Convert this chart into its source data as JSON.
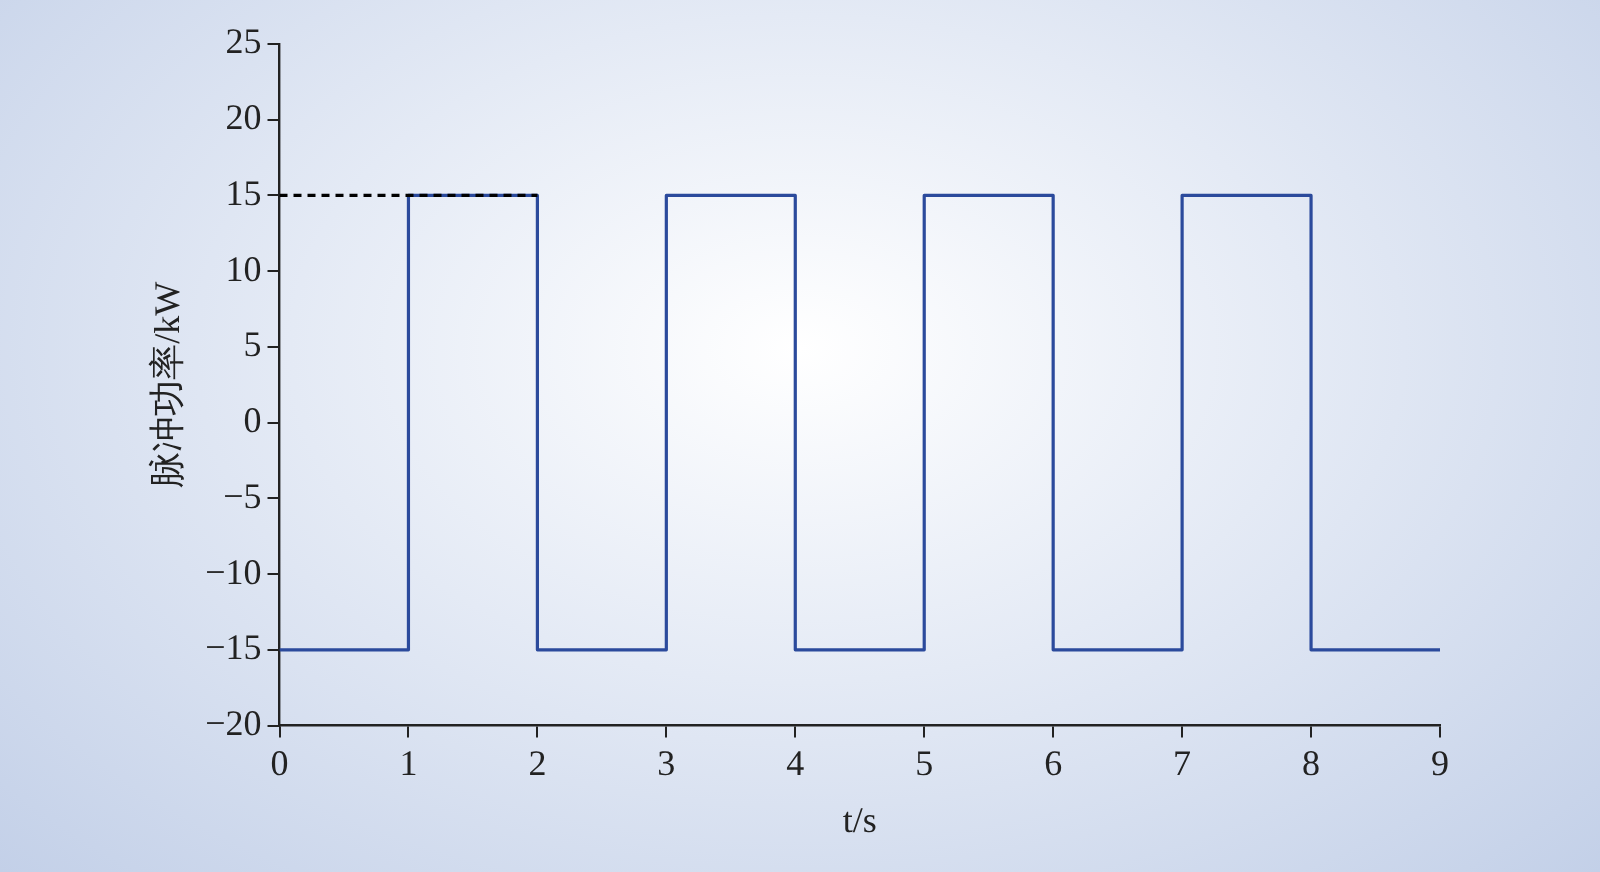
{
  "chart_data": {
    "type": "step",
    "xlabel": "t/s",
    "ylabel": "脉冲功率/kW",
    "xlim": [
      0,
      9
    ],
    "xticks": [
      0,
      1,
      2,
      3,
      4,
      5,
      6,
      7,
      8,
      9
    ],
    "ylim": [
      -20,
      25
    ],
    "yticks": [
      {
        "value": -20,
        "label": "−20"
      },
      {
        "value": -15,
        "label": "−15"
      },
      {
        "value": -10,
        "label": "−10"
      },
      {
        "value": -5,
        "label": "−5"
      },
      0,
      5,
      10,
      15,
      20,
      25
    ],
    "marker": "none",
    "series": [
      {
        "type": "line",
        "color": "#000000",
        "line_style": "dashed",
        "x": [
          0,
          2
        ],
        "values": [
          15,
          15
        ]
      },
      {
        "color": "#2b4a9c",
        "line_style": "solid",
        "x": [
          0,
          1,
          2,
          3,
          4,
          5,
          6,
          7,
          8,
          9
        ],
        "values": [
          -15,
          15,
          -15,
          15,
          -15,
          15,
          -15,
          15,
          -15,
          -15
        ]
      }
    ]
  }
}
